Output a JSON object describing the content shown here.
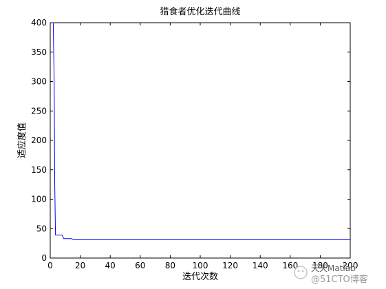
{
  "chart_data": {
    "type": "line",
    "title": "猎食者优化迭代曲线",
    "xlabel": "迭代次数",
    "ylabel": "适应度值",
    "xlim": [
      0,
      200
    ],
    "ylim": [
      0,
      400
    ],
    "xticks": [
      0,
      20,
      40,
      60,
      80,
      100,
      120,
      140,
      160,
      180,
      200
    ],
    "yticks": [
      0,
      50,
      100,
      150,
      200,
      250,
      300,
      350,
      400
    ],
    "grid": false,
    "series": [
      {
        "color": "#0000ff",
        "x": [
          1,
          2,
          2.6,
          3,
          3.5,
          8,
          9,
          14,
          16,
          200
        ],
        "y": [
          400,
          400,
          305,
          128,
          39,
          39,
          33,
          33,
          31,
          31
        ]
      }
    ]
  },
  "watermark": {
    "line1": "天天Matlab",
    "line2": "@51CTO博客"
  }
}
